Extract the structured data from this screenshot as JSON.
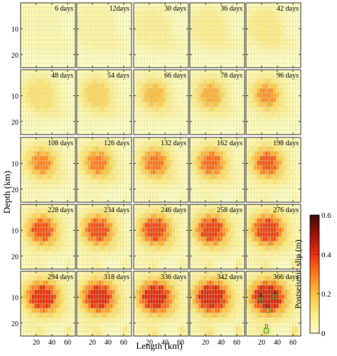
{
  "chart_data": {
    "type": "heatmap",
    "xlabel": "Length (km)",
    "ylabel": "Depth (km)",
    "colorbar_label": "Postseismic slip (m)",
    "colorbar_ticks": [
      "0",
      "0.2",
      "0.4",
      "0.6"
    ],
    "colorbar_range": [
      0,
      0.6
    ],
    "colorbar_colors": [
      "#fffec8",
      "#ffe980",
      "#ffc040",
      "#ff7a20",
      "#e83010",
      "#a01208",
      "#3a0a0a"
    ],
    "xlim": [
      0,
      70
    ],
    "ylim": [
      0,
      25
    ],
    "x_ticks": [
      "20",
      "40",
      "60"
    ],
    "y_ticks": [
      "10",
      "20"
    ],
    "grid": true,
    "rows": 5,
    "cols": 5,
    "panels": [
      {
        "label": "6 days",
        "max": 0.03
      },
      {
        "label": "12days",
        "max": 0.05
      },
      {
        "label": "30 days",
        "max": 0.07
      },
      {
        "label": "36 days",
        "max": 0.08
      },
      {
        "label": "42 days",
        "max": 0.09
      },
      {
        "label": "48 days",
        "max": 0.12
      },
      {
        "label": "54 days",
        "max": 0.15
      },
      {
        "label": "66 days",
        "max": 0.21
      },
      {
        "label": "78 days",
        "max": 0.23
      },
      {
        "label": "96 days",
        "max": 0.27
      },
      {
        "label": "108 days",
        "max": 0.29
      },
      {
        "label": "126 days",
        "max": 0.3
      },
      {
        "label": "132 days",
        "max": 0.31
      },
      {
        "label": "162 days",
        "max": 0.33
      },
      {
        "label": "198 days",
        "max": 0.35
      },
      {
        "label": "228 days",
        "max": 0.36
      },
      {
        "label": "234 days",
        "max": 0.36
      },
      {
        "label": "246 days",
        "max": 0.37
      },
      {
        "label": "258 days",
        "max": 0.38
      },
      {
        "label": "276 days",
        "max": 0.38
      },
      {
        "label": "294 days",
        "max": 0.4
      },
      {
        "label": "318 days",
        "max": 0.41
      },
      {
        "label": "336 days",
        "max": 0.42
      },
      {
        "label": "342 days",
        "max": 0.42
      },
      {
        "label": "366 days",
        "max": 0.43
      }
    ],
    "markers": [
      {
        "label": "B",
        "x": 19,
        "y": 11
      },
      {
        "label": "A",
        "x": 37,
        "y": 10
      },
      {
        "label": "C",
        "x": 28,
        "y": 15
      },
      {
        "label": "D",
        "x": 26,
        "y": 23
      }
    ]
  }
}
